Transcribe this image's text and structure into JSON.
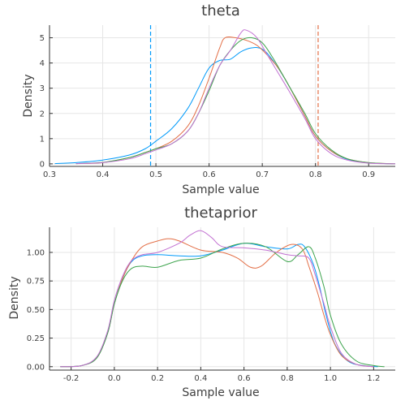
{
  "colors": {
    "series": [
      "#009AFA",
      "#E36F47",
      "#3EA44E",
      "#C271D2"
    ],
    "ref_lines": [
      "#009AFA",
      "#E36F47"
    ]
  },
  "chart_data": [
    {
      "type": "line",
      "title": "theta",
      "xlabel": "Sample value",
      "ylabel": "Density",
      "xlim": [
        0.3,
        0.95
      ],
      "ylim": [
        -0.1,
        5.5
      ],
      "xticks": [
        "0.3",
        "0.4",
        "0.5",
        "0.6",
        "0.7",
        "0.8",
        "0.9"
      ],
      "yticks": [
        "0",
        "1",
        "2",
        "3",
        "4",
        "5"
      ],
      "grid": true,
      "legend": "none",
      "vertical_lines": [
        0.49,
        0.805
      ],
      "series": [
        {
          "x": [
            0.31,
            0.35,
            0.4,
            0.45,
            0.48,
            0.5,
            0.53,
            0.56,
            0.58,
            0.6,
            0.62,
            0.64,
            0.66,
            0.68,
            0.7,
            0.72,
            0.75,
            0.78,
            0.8,
            0.83,
            0.86,
            0.9,
            0.95
          ],
          "y": [
            0.01,
            0.05,
            0.15,
            0.35,
            0.6,
            0.9,
            1.4,
            2.2,
            3.0,
            3.8,
            4.1,
            4.15,
            4.45,
            4.6,
            4.55,
            4.1,
            3.1,
            1.9,
            1.1,
            0.5,
            0.18,
            0.04,
            0.0
          ]
        },
        {
          "x": [
            0.35,
            0.4,
            0.45,
            0.48,
            0.5,
            0.53,
            0.56,
            0.58,
            0.6,
            0.62,
            0.63,
            0.65,
            0.67,
            0.69,
            0.71,
            0.73,
            0.75,
            0.78,
            0.8,
            0.83,
            0.86,
            0.9,
            0.95
          ],
          "y": [
            0.01,
            0.05,
            0.25,
            0.45,
            0.6,
            0.9,
            1.5,
            2.3,
            3.4,
            4.6,
            5.0,
            5.0,
            4.9,
            4.7,
            4.3,
            3.8,
            3.1,
            1.9,
            1.1,
            0.5,
            0.2,
            0.05,
            0.0
          ]
        },
        {
          "x": [
            0.35,
            0.4,
            0.45,
            0.48,
            0.5,
            0.53,
            0.56,
            0.58,
            0.6,
            0.62,
            0.64,
            0.66,
            0.68,
            0.7,
            0.72,
            0.75,
            0.78,
            0.8,
            0.83,
            0.86,
            0.9,
            0.95
          ],
          "y": [
            0.01,
            0.06,
            0.25,
            0.45,
            0.6,
            0.8,
            1.3,
            2.0,
            2.9,
            3.9,
            4.5,
            4.9,
            5.0,
            4.8,
            4.2,
            3.1,
            2.0,
            1.2,
            0.55,
            0.2,
            0.05,
            0.0
          ]
        },
        {
          "x": [
            0.35,
            0.4,
            0.45,
            0.48,
            0.5,
            0.53,
            0.56,
            0.58,
            0.6,
            0.62,
            0.64,
            0.66,
            0.67,
            0.69,
            0.71,
            0.73,
            0.75,
            0.78,
            0.8,
            0.83,
            0.86,
            0.9,
            0.95
          ],
          "y": [
            0.01,
            0.05,
            0.2,
            0.4,
            0.55,
            0.8,
            1.3,
            2.0,
            3.0,
            3.9,
            4.5,
            5.2,
            5.3,
            5.0,
            4.3,
            3.6,
            2.9,
            1.8,
            1.0,
            0.4,
            0.15,
            0.03,
            0.0
          ]
        }
      ]
    },
    {
      "type": "line",
      "title": "thetaprior",
      "xlabel": "Sample value",
      "ylabel": "Density",
      "xlim": [
        -0.3,
        1.3
      ],
      "ylim": [
        -0.03,
        1.22
      ],
      "xticks": [
        "-0.2",
        "0.0",
        "0.2",
        "0.4",
        "0.6",
        "0.8",
        "1.0",
        "1.2"
      ],
      "yticks": [
        "0.00",
        "0.25",
        "0.50",
        "0.75",
        "1.00"
      ],
      "grid": true,
      "legend": "none",
      "series": [
        {
          "x": [
            -0.25,
            -0.15,
            -0.08,
            -0.03,
            0.0,
            0.04,
            0.08,
            0.13,
            0.2,
            0.3,
            0.4,
            0.5,
            0.6,
            0.7,
            0.8,
            0.85,
            0.88,
            0.92,
            0.95,
            0.98,
            1.02,
            1.08,
            1.15,
            1.22
          ],
          "y": [
            0.0,
            0.01,
            0.08,
            0.3,
            0.55,
            0.78,
            0.92,
            0.97,
            0.98,
            0.97,
            0.97,
            1.02,
            1.08,
            1.05,
            1.03,
            1.07,
            1.05,
            0.9,
            0.7,
            0.45,
            0.2,
            0.05,
            0.01,
            0.0
          ]
        },
        {
          "x": [
            -0.25,
            -0.15,
            -0.08,
            -0.03,
            0.0,
            0.04,
            0.08,
            0.13,
            0.2,
            0.25,
            0.3,
            0.4,
            0.5,
            0.57,
            0.63,
            0.68,
            0.75,
            0.82,
            0.87,
            0.9,
            0.94,
            0.97,
            1.0,
            1.05,
            1.12,
            1.2
          ],
          "y": [
            0.0,
            0.01,
            0.08,
            0.3,
            0.55,
            0.78,
            0.93,
            1.05,
            1.1,
            1.12,
            1.1,
            1.02,
            1.0,
            0.95,
            0.87,
            0.88,
            1.0,
            1.07,
            1.03,
            0.88,
            0.65,
            0.45,
            0.28,
            0.1,
            0.02,
            0.0
          ]
        },
        {
          "x": [
            -0.25,
            -0.15,
            -0.08,
            -0.03,
            0.0,
            0.04,
            0.08,
            0.13,
            0.2,
            0.3,
            0.4,
            0.5,
            0.6,
            0.7,
            0.8,
            0.85,
            0.9,
            0.93,
            0.97,
            1.0,
            1.05,
            1.12,
            1.2,
            1.25
          ],
          "y": [
            0.0,
            0.01,
            0.08,
            0.3,
            0.55,
            0.76,
            0.86,
            0.88,
            0.87,
            0.93,
            0.95,
            1.03,
            1.08,
            1.05,
            0.92,
            0.98,
            1.05,
            0.95,
            0.7,
            0.45,
            0.2,
            0.05,
            0.01,
            0.0
          ]
        },
        {
          "x": [
            -0.25,
            -0.15,
            -0.08,
            -0.03,
            0.0,
            0.04,
            0.08,
            0.13,
            0.2,
            0.3,
            0.35,
            0.4,
            0.45,
            0.5,
            0.6,
            0.7,
            0.8,
            0.85,
            0.9,
            0.93,
            0.97,
            1.0,
            1.05,
            1.12,
            1.2
          ],
          "y": [
            0.0,
            0.01,
            0.09,
            0.32,
            0.58,
            0.8,
            0.93,
            0.98,
            1.0,
            1.08,
            1.15,
            1.19,
            1.13,
            1.05,
            1.04,
            1.02,
            0.98,
            0.97,
            0.95,
            0.8,
            0.55,
            0.35,
            0.12,
            0.02,
            0.0
          ]
        }
      ]
    }
  ]
}
